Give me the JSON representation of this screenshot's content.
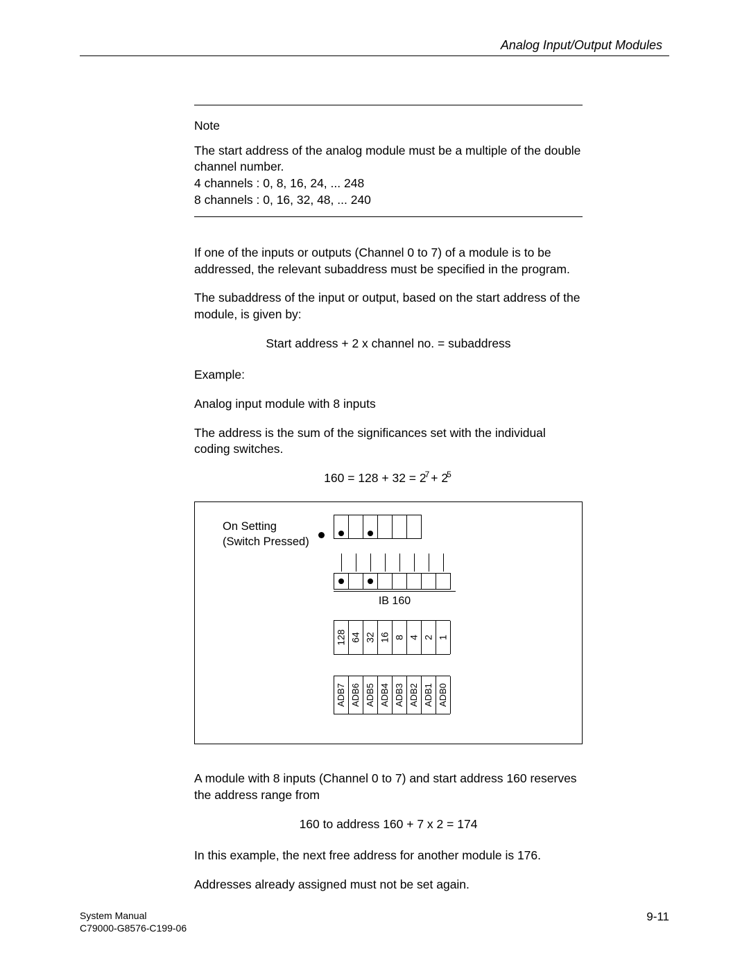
{
  "header": {
    "title": "Analog Input/Output Modules"
  },
  "note": {
    "label": "Note",
    "line1": "The start address of the analog module must be a multiple of the double channel number.",
    "line2": "4 channels : 0, 8, 16, 24, ... 248",
    "line3": "8 channels : 0, 16, 32, 48, ... 240"
  },
  "body": {
    "p1": "If one of the inputs or outputs (Channel 0 to 7) of a module is to be addressed, the relevant subaddress must be specified in the program.",
    "p2": "The subaddress of the input or output, based on the start address of the module, is given by:",
    "formula1": "Start address + 2 x channel no. = subaddress",
    "p3": "Example:",
    "p4": "Analog input module with 8 inputs",
    "p5": "The address is the sum of the significances set with the individual coding switches.",
    "formula2_left": "160 = 128 + 32 = 2",
    "formula2_sup1": "7",
    "formula2_mid": "+ 2",
    "formula2_sup2": "5",
    "p6": "A module with 8 inputs (Channel 0 to 7) and start address 160 reserves the address range from",
    "formula3": "160 to address 160 + 7 x 2 = 174",
    "p7": "In this example, the next free address for another module is 176.",
    "p8": "Addresses already assigned must not be set again."
  },
  "diagram": {
    "label1": "On Setting",
    "label2": "(Switch Pressed)",
    "dip_pressed": [
      true,
      false,
      true,
      false,
      false,
      false
    ],
    "row2_pressed": [
      true,
      false,
      true,
      false,
      false,
      false,
      false,
      false
    ],
    "ib_label": "IB 160",
    "values": [
      "128",
      "64",
      "32",
      "16",
      "8",
      "4",
      "2",
      "1"
    ],
    "adb": [
      "ADB7",
      "ADB6",
      "ADB5",
      "ADB4",
      "ADB3",
      "ADB2",
      "ADB1",
      "ADB0"
    ],
    "colors": {
      "line": "#000000",
      "bg": "#ffffff"
    }
  },
  "footer": {
    "l1": "System Manual",
    "l2": "C79000-G8576-C199-06",
    "page": "9-11"
  }
}
